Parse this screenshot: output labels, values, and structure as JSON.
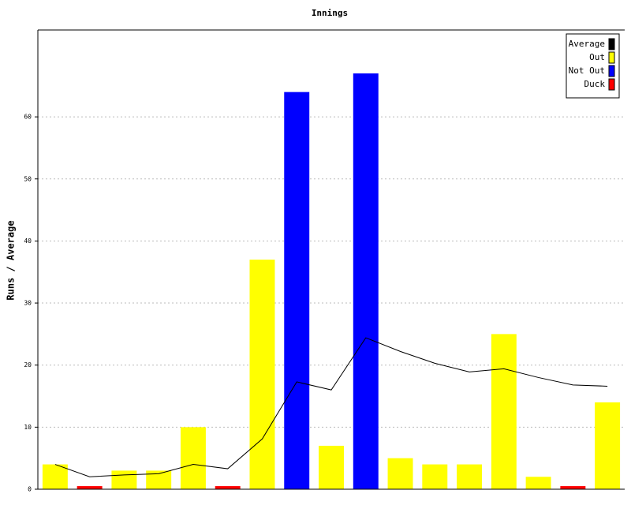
{
  "chart_data": {
    "type": "bar",
    "title": "Innings",
    "y_label": "Runs / Average",
    "categories": [
      null,
      null,
      null,
      null,
      null,
      null,
      null,
      null,
      null,
      null,
      null,
      null,
      null,
      null,
      null,
      null,
      null
    ],
    "series": [
      {
        "name": "Average",
        "color": "#000000",
        "type": "line",
        "values": [
          4,
          2,
          2.3,
          2.5,
          4,
          3.3,
          8.1,
          17.3,
          16,
          24.4,
          22.2,
          20.3,
          18.9,
          19.4,
          18,
          16.8,
          16.6
        ]
      },
      {
        "name": "Out",
        "color": "#ffff00",
        "type": "bar",
        "values": [
          4,
          null,
          3,
          3,
          10,
          null,
          37,
          null,
          7,
          null,
          5,
          4,
          4,
          25,
          2,
          null,
          14
        ]
      },
      {
        "name": "Not Out",
        "color": "#0000ff",
        "type": "bar",
        "values": [
          null,
          null,
          null,
          null,
          null,
          null,
          null,
          64,
          null,
          67,
          null,
          null,
          null,
          null,
          null,
          null,
          null
        ]
      },
      {
        "name": "Duck",
        "color": "#ff0000",
        "type": "bar",
        "values": [
          null,
          0.5,
          null,
          null,
          null,
          0.5,
          null,
          null,
          null,
          null,
          null,
          null,
          null,
          null,
          null,
          0.5,
          null
        ]
      }
    ],
    "ylim": [
      0,
      74
    ],
    "yticks": [
      0,
      10,
      20,
      30,
      40,
      50,
      60
    ],
    "grid": true,
    "legend": "top-right"
  }
}
